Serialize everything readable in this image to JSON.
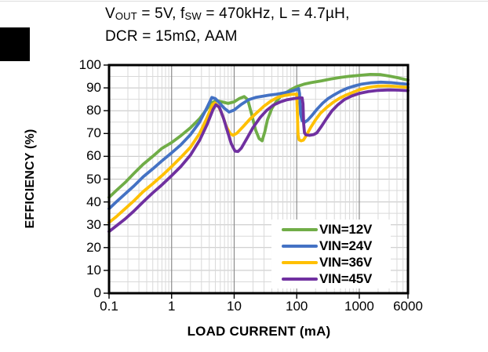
{
  "title": {
    "seg1": "V",
    "seg1_sub": "OUT",
    "seg2": " = 5V, f",
    "seg2_sub": "SW",
    "seg3": " = 470kHz, L = 4.7µH,",
    "line2": "DCR = 15mΩ, AAM"
  },
  "chart_data": {
    "type": "line",
    "title": "VOUT = 5V, fSW = 470kHz, L = 4.7µH, DCR = 15mΩ, AAM",
    "xlabel": "LOAD CURRENT (mA)",
    "ylabel": "EFFICIENCY (%)",
    "x_scale": "log",
    "xlim": [
      0.1,
      6000
    ],
    "ylim": [
      0,
      100
    ],
    "grid": "major and minor, gray",
    "legend_position": "inside bottom-right, white box",
    "x_ticks": [
      {
        "v": 0.1,
        "label": "0.1"
      },
      {
        "v": 1,
        "label": "1"
      },
      {
        "v": 10,
        "label": "10"
      },
      {
        "v": 100,
        "label": "100"
      },
      {
        "v": 1000,
        "label": "1000"
      },
      {
        "v": 6000,
        "label": "6000"
      }
    ],
    "y_ticks": [
      {
        "v": 100,
        "label": "100"
      },
      {
        "v": 90,
        "label": "90"
      },
      {
        "v": 80,
        "label": "80"
      },
      {
        "v": 70,
        "label": "70"
      },
      {
        "v": 60,
        "label": "60"
      },
      {
        "v": 50,
        "label": "50"
      },
      {
        "v": 40,
        "label": "40"
      },
      {
        "v": 30,
        "label": "30"
      },
      {
        "v": 20,
        "label": "20"
      },
      {
        "v": 10,
        "label": "10"
      },
      {
        "v": 0,
        "label": "0"
      }
    ],
    "y_minor_step": 5,
    "series": [
      {
        "name": "VIN=12V",
        "color": "#70AD47",
        "points": [
          [
            0.1,
            42
          ],
          [
            0.13,
            45
          ],
          [
            0.18,
            48.5
          ],
          [
            0.25,
            52.5
          ],
          [
            0.35,
            56.5
          ],
          [
            0.5,
            60
          ],
          [
            0.7,
            63.5
          ],
          [
            1,
            66
          ],
          [
            1.4,
            69
          ],
          [
            2,
            72.5
          ],
          [
            2.8,
            76.5
          ],
          [
            3.6,
            80.5
          ],
          [
            4.4,
            83.5
          ],
          [
            5.2,
            84.4
          ],
          [
            6.5,
            83.8
          ],
          [
            8,
            83.2
          ],
          [
            10,
            83.9
          ],
          [
            12,
            85.3
          ],
          [
            14.5,
            86.2
          ],
          [
            16.5,
            84.8
          ],
          [
            19,
            78.5
          ],
          [
            22,
            71.5
          ],
          [
            25,
            67.8
          ],
          [
            28,
            66.8
          ],
          [
            31,
            71
          ],
          [
            34,
            76
          ],
          [
            40,
            81
          ],
          [
            47,
            84
          ],
          [
            55,
            86.2
          ],
          [
            70,
            88.2
          ],
          [
            85,
            89.6
          ],
          [
            100,
            90.6
          ],
          [
            130,
            91.6
          ],
          [
            170,
            92.3
          ],
          [
            250,
            93.1
          ],
          [
            350,
            93.9
          ],
          [
            500,
            94.6
          ],
          [
            700,
            95.1
          ],
          [
            1000,
            95.5
          ],
          [
            1500,
            95.9
          ],
          [
            2200,
            95.8
          ],
          [
            3000,
            95.2
          ],
          [
            4200,
            94.4
          ],
          [
            6000,
            93.4
          ]
        ]
      },
      {
        "name": "VIN=24V",
        "color": "#4472C4",
        "points": [
          [
            0.1,
            37
          ],
          [
            0.13,
            40
          ],
          [
            0.18,
            43.5
          ],
          [
            0.25,
            47
          ],
          [
            0.35,
            51
          ],
          [
            0.5,
            54.5
          ],
          [
            0.7,
            58
          ],
          [
            1,
            61.5
          ],
          [
            1.4,
            65
          ],
          [
            2,
            69.5
          ],
          [
            2.8,
            75
          ],
          [
            3.7,
            81.5
          ],
          [
            4.4,
            85.8
          ],
          [
            5,
            85.3
          ],
          [
            6,
            83
          ],
          [
            7,
            81
          ],
          [
            8.3,
            79.4
          ],
          [
            10,
            80.3
          ],
          [
            13,
            82.8
          ],
          [
            17,
            84.8
          ],
          [
            22,
            85.8
          ],
          [
            28,
            86.3
          ],
          [
            36,
            86.8
          ],
          [
            47,
            87.2
          ],
          [
            60,
            87.7
          ],
          [
            75,
            88.3
          ],
          [
            90,
            88.9
          ],
          [
            100,
            89.3
          ],
          [
            107,
            89.7
          ],
          [
            111,
            87.5
          ],
          [
            115,
            78.5
          ],
          [
            122,
            75.6
          ],
          [
            135,
            75
          ],
          [
            150,
            75.9
          ],
          [
            175,
            77.9
          ],
          [
            210,
            80.6
          ],
          [
            260,
            83.3
          ],
          [
            320,
            85.4
          ],
          [
            400,
            87
          ],
          [
            500,
            88.5
          ],
          [
            650,
            89.9
          ],
          [
            850,
            90.9
          ],
          [
            1100,
            91.7
          ],
          [
            1500,
            92.2
          ],
          [
            2200,
            92.5
          ],
          [
            3200,
            92.3
          ],
          [
            4500,
            91.9
          ],
          [
            6000,
            91.6
          ]
        ]
      },
      {
        "name": "VIN=36V",
        "color": "#FFC000",
        "points": [
          [
            0.1,
            31
          ],
          [
            0.13,
            33.5
          ],
          [
            0.18,
            37
          ],
          [
            0.25,
            40.5
          ],
          [
            0.35,
            44.5
          ],
          [
            0.5,
            48
          ],
          [
            0.7,
            51.5
          ],
          [
            1,
            55.5
          ],
          [
            1.4,
            59.5
          ],
          [
            2,
            64
          ],
          [
            2.8,
            70
          ],
          [
            3.7,
            77
          ],
          [
            4.5,
            82.6
          ],
          [
            4.9,
            83.4
          ],
          [
            5.6,
            82
          ],
          [
            6.5,
            78
          ],
          [
            7.5,
            73
          ],
          [
            8.6,
            70
          ],
          [
            9.6,
            69.2
          ],
          [
            11,
            70.1
          ],
          [
            14,
            73.1
          ],
          [
            18,
            76.4
          ],
          [
            24,
            79.6
          ],
          [
            30,
            82
          ],
          [
            38,
            84.1
          ],
          [
            50,
            85.9
          ],
          [
            65,
            86.7
          ],
          [
            80,
            87.1
          ],
          [
            95,
            87.3
          ],
          [
            100,
            87.3
          ],
          [
            102,
            80
          ],
          [
            105,
            69.5
          ],
          [
            109,
            67.2
          ],
          [
            118,
            66.8
          ],
          [
            128,
            67.1
          ],
          [
            145,
            69.6
          ],
          [
            170,
            73
          ],
          [
            200,
            76
          ],
          [
            240,
            78.9
          ],
          [
            300,
            81.4
          ],
          [
            380,
            83.6
          ],
          [
            480,
            85.4
          ],
          [
            620,
            86.9
          ],
          [
            800,
            88.1
          ],
          [
            1000,
            89.2
          ],
          [
            1400,
            90.2
          ],
          [
            2000,
            90.8
          ],
          [
            2800,
            90.9
          ],
          [
            4000,
            90.6
          ],
          [
            6000,
            90.2
          ]
        ]
      },
      {
        "name": "VIN=45V",
        "color": "#7030A0",
        "points": [
          [
            0.1,
            27
          ],
          [
            0.13,
            29.5
          ],
          [
            0.18,
            32.5
          ],
          [
            0.25,
            36
          ],
          [
            0.35,
            40
          ],
          [
            0.5,
            44
          ],
          [
            0.7,
            47.5
          ],
          [
            1,
            51.5
          ],
          [
            1.4,
            55.5
          ],
          [
            2,
            60.5
          ],
          [
            2.8,
            67
          ],
          [
            3.7,
            74
          ],
          [
            4.6,
            80.6
          ],
          [
            5.1,
            82.6
          ],
          [
            5.8,
            81.5
          ],
          [
            6.8,
            76.5
          ],
          [
            7.8,
            71
          ],
          [
            9,
            65.5
          ],
          [
            10.3,
            62.3
          ],
          [
            11.5,
            62.1
          ],
          [
            13,
            63.6
          ],
          [
            16,
            67.9
          ],
          [
            20,
            72.6
          ],
          [
            26,
            77
          ],
          [
            33,
            80.1
          ],
          [
            42,
            82.4
          ],
          [
            55,
            83.9
          ],
          [
            70,
            84.8
          ],
          [
            90,
            85.3
          ],
          [
            110,
            85.6
          ],
          [
            122,
            85.6
          ],
          [
            126,
            83
          ],
          [
            129,
            74.5
          ],
          [
            133,
            70.3
          ],
          [
            140,
            69.4
          ],
          [
            160,
            69.2
          ],
          [
            185,
            69.5
          ],
          [
            210,
            70.3
          ],
          [
            245,
            72.9
          ],
          [
            295,
            76.3
          ],
          [
            365,
            79.9
          ],
          [
            455,
            82.6
          ],
          [
            580,
            84.9
          ],
          [
            750,
            86.4
          ],
          [
            1000,
            87.6
          ],
          [
            1400,
            88.4
          ],
          [
            2000,
            88.9
          ],
          [
            3000,
            89.1
          ],
          [
            4300,
            89
          ],
          [
            6000,
            88.8
          ]
        ]
      }
    ]
  },
  "style_colors": {
    "grid_minor": "#d9d9d9",
    "grid_major_h": "#c3c3c3",
    "grid_major_v": "#8c8c8c",
    "axis_border": "#000000"
  }
}
